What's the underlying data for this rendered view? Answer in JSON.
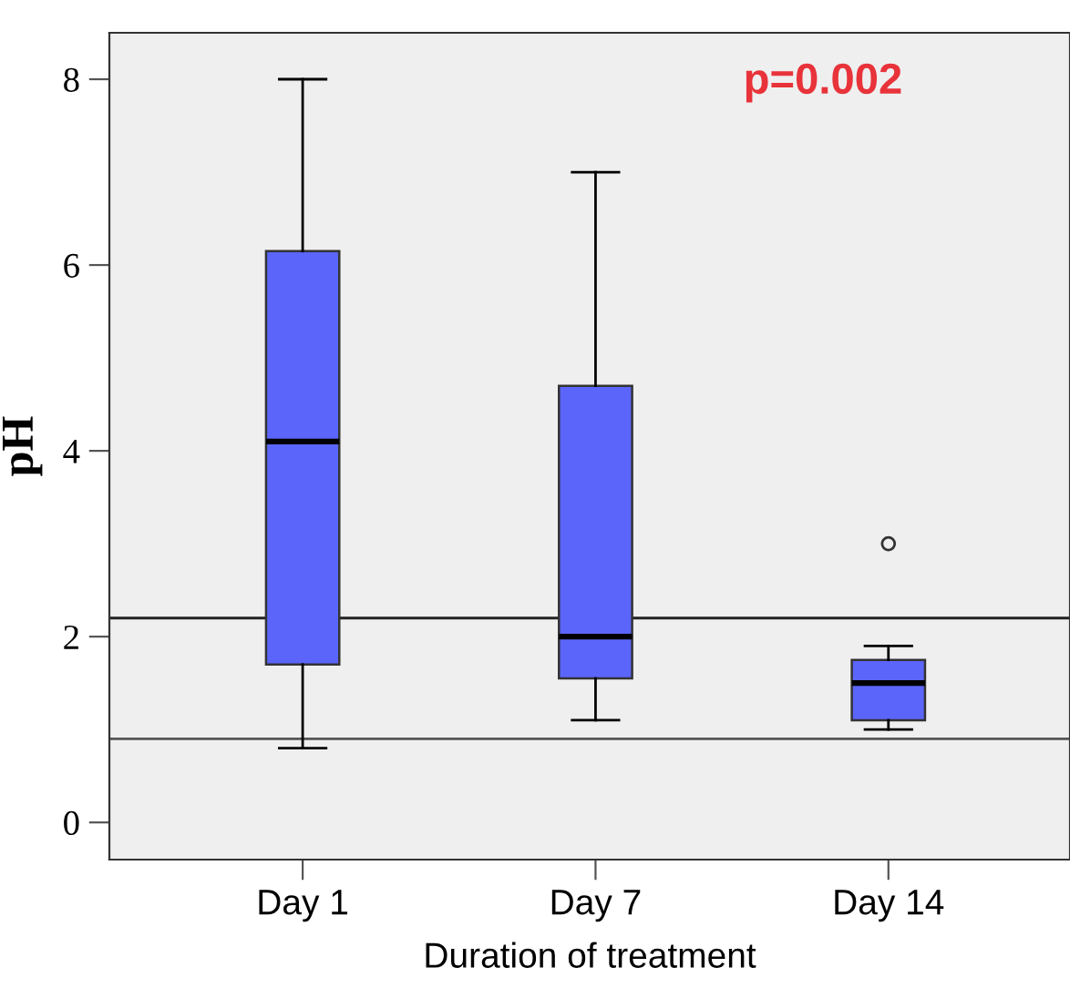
{
  "chart_data": {
    "type": "box",
    "xlabel": "Duration of treatment",
    "ylabel": "pH",
    "categories": [
      "Day 1",
      "Day 7",
      "Day 14"
    ],
    "boxes": [
      {
        "low": 0.8,
        "q1": 1.7,
        "median": 4.1,
        "q3": 6.15,
        "high": 8.0
      },
      {
        "low": 1.1,
        "q1": 1.55,
        "median": 2.0,
        "q3": 4.7,
        "high": 7.0
      },
      {
        "low": 1.0,
        "q1": 1.1,
        "median": 1.5,
        "q3": 1.75,
        "high": 1.9,
        "outliers": [
          3.0
        ]
      }
    ],
    "color": "#5b65fa",
    "ylim": [
      -0.4,
      8.5
    ],
    "yticks": [
      0,
      2,
      4,
      6,
      8
    ],
    "ref_lines": [
      {
        "axis": "y",
        "value": 2.2,
        "color": "#222222"
      },
      {
        "axis": "y",
        "value": 0.9,
        "color": "#555555"
      }
    ],
    "annotations": [
      "p=0.002"
    ],
    "grid": false
  }
}
